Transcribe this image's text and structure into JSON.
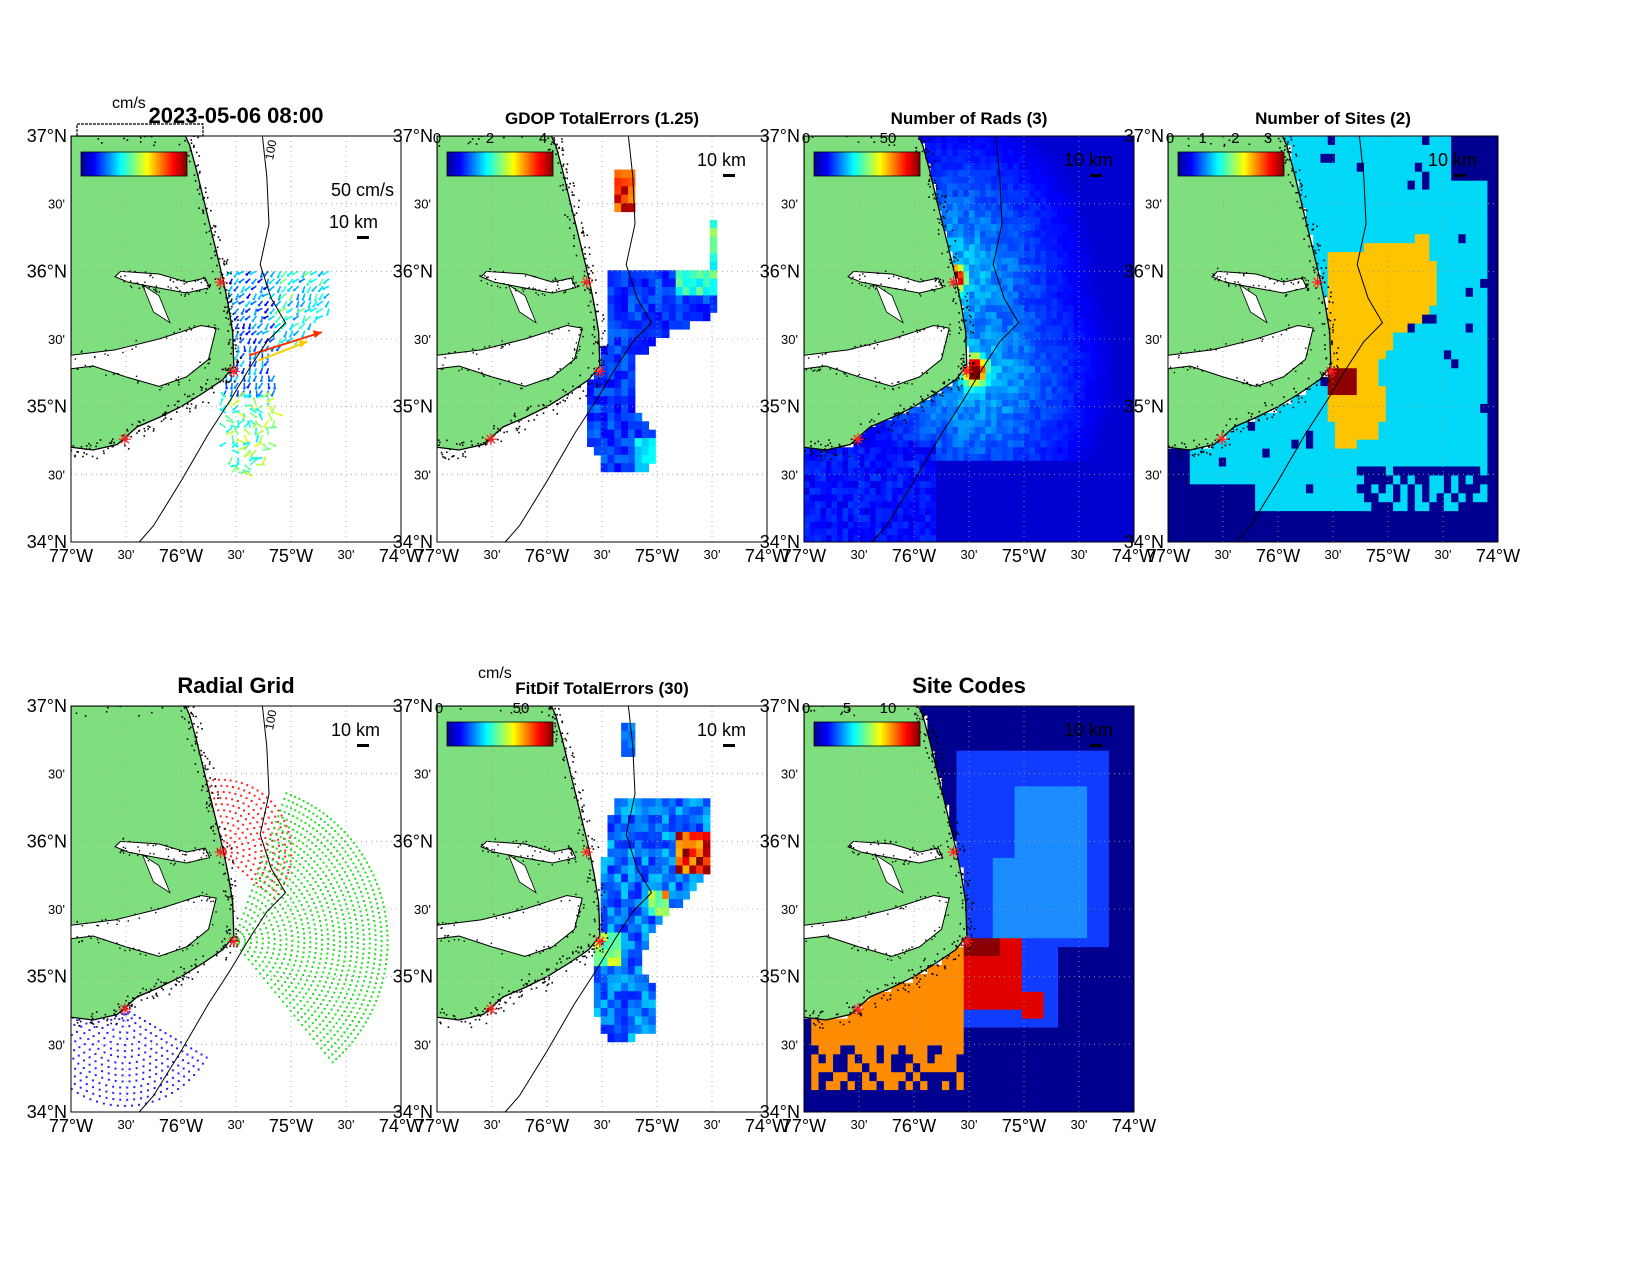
{
  "figure": {
    "panels": [
      {
        "id": "currents",
        "title": "2023-05-06 08:00",
        "title_size": "big",
        "bg": "vectors",
        "cb_ticks": [],
        "cb_header": "cm/s",
        "overprint": "Overprinted labels",
        "scale_label": "50 cm/s",
        "km_label": "10 km",
        "iso": "100"
      },
      {
        "id": "gdop",
        "title": "GDOP TotalErrors (1.25)",
        "title_size": "small",
        "bg": "gdop",
        "cb_ticks": [
          "0",
          "2",
          "4"
        ],
        "cb_header": "",
        "km_label": "10 km",
        "iso": "1.25"
      },
      {
        "id": "nrads",
        "title": "Number of Rads (3)",
        "title_size": "small",
        "bg": "nrads",
        "cb_ticks": [
          "0",
          "50"
        ],
        "cb_header": "",
        "km_label": "10 km",
        "iso": "3"
      },
      {
        "id": "nsites",
        "title": "Number of Sites (2)",
        "title_size": "small",
        "bg": "nsites",
        "cb_ticks": [
          "0",
          "1",
          "2",
          "3"
        ],
        "cb_header": "",
        "km_label": "10 km",
        "iso": "2"
      },
      {
        "id": "radgrid",
        "title": "Radial Grid",
        "title_size": "big",
        "bg": "radgrid",
        "cb_ticks": [],
        "cb_header": "",
        "km_label": "10 km",
        "iso": "100"
      },
      {
        "id": "fitdif",
        "title": "FitDif TotalErrors (30)",
        "title_size": "small",
        "bg": "fitdif",
        "cb_ticks": [
          "0",
          "50"
        ],
        "cb_header": "cm/s",
        "km_label": "10 km",
        "iso": "30"
      },
      {
        "id": "sitecodes",
        "title": "Site Codes",
        "title_size": "big",
        "bg": "sitecodes",
        "cb_ticks": [
          "0",
          "5",
          "10"
        ],
        "cb_header": "",
        "km_label": "10 km",
        "iso": ""
      }
    ],
    "lat_labels": [
      "37°N",
      "36°N",
      "35°N",
      "34°N"
    ],
    "lat_minor": "30'",
    "lon_labels": [
      "77°W",
      "76°W",
      "75°W",
      "74°W"
    ],
    "lon_minor": "30'"
  },
  "colors": {
    "land": "#7fdf7f",
    "site_marker": "#ff2020",
    "radial_site_a": "#ff2020",
    "radial_site_b": "#22dd22",
    "radial_site_c": "#2222ff",
    "sites_low": "#00d8f8",
    "sites_mid": "#ffc400",
    "sites_high": "#900000",
    "code_a": "#0f3cff",
    "code_b": "#1a8cff",
    "code_c": "#ff8c00",
    "code_d": "#e00000",
    "code_e": "#8a0000",
    "field_bg": "#000090"
  },
  "chart_data": [
    {
      "type": "vector field",
      "panel": "currents",
      "title": "2023-05-06 08:00",
      "xlim": [
        -77,
        -74
      ],
      "ylim": [
        34,
        37
      ],
      "colorbar_unit": "cm/s",
      "sites": [
        [
          -75.64,
          35.92
        ],
        [
          -75.52,
          35.26
        ],
        [
          -76.51,
          34.76
        ]
      ]
    },
    {
      "type": "heatmap",
      "panel": "gdop",
      "title": "GDOP TotalErrors (1.25)",
      "xlim": [
        -77,
        -74
      ],
      "ylim": [
        34,
        37
      ],
      "colorbar_range": [
        0,
        4
      ]
    },
    {
      "type": "heatmap",
      "panel": "nrads",
      "title": "Number of Rads (3)",
      "xlim": [
        -77,
        -74
      ],
      "ylim": [
        34,
        37
      ],
      "colorbar_range": [
        0,
        50
      ]
    },
    {
      "type": "heatmap",
      "panel": "nsites",
      "title": "Number of Sites (2)",
      "xlim": [
        -77,
        -74
      ],
      "ylim": [
        34,
        37
      ],
      "colorbar_range": [
        0,
        3
      ]
    },
    {
      "type": "scatter",
      "panel": "radgrid",
      "title": "Radial Grid",
      "xlim": [
        -77,
        -74
      ],
      "ylim": [
        34,
        37
      ]
    },
    {
      "type": "heatmap",
      "panel": "fitdif",
      "title": "FitDif TotalErrors (30)",
      "xlim": [
        -77,
        -74
      ],
      "ylim": [
        34,
        37
      ],
      "colorbar_unit": "cm/s",
      "colorbar_range": [
        0,
        60
      ]
    },
    {
      "type": "heatmap",
      "panel": "sitecodes",
      "title": "Site Codes",
      "xlim": [
        -77,
        -74
      ],
      "ylim": [
        34,
        37
      ],
      "colorbar_range": [
        0,
        12
      ]
    }
  ]
}
